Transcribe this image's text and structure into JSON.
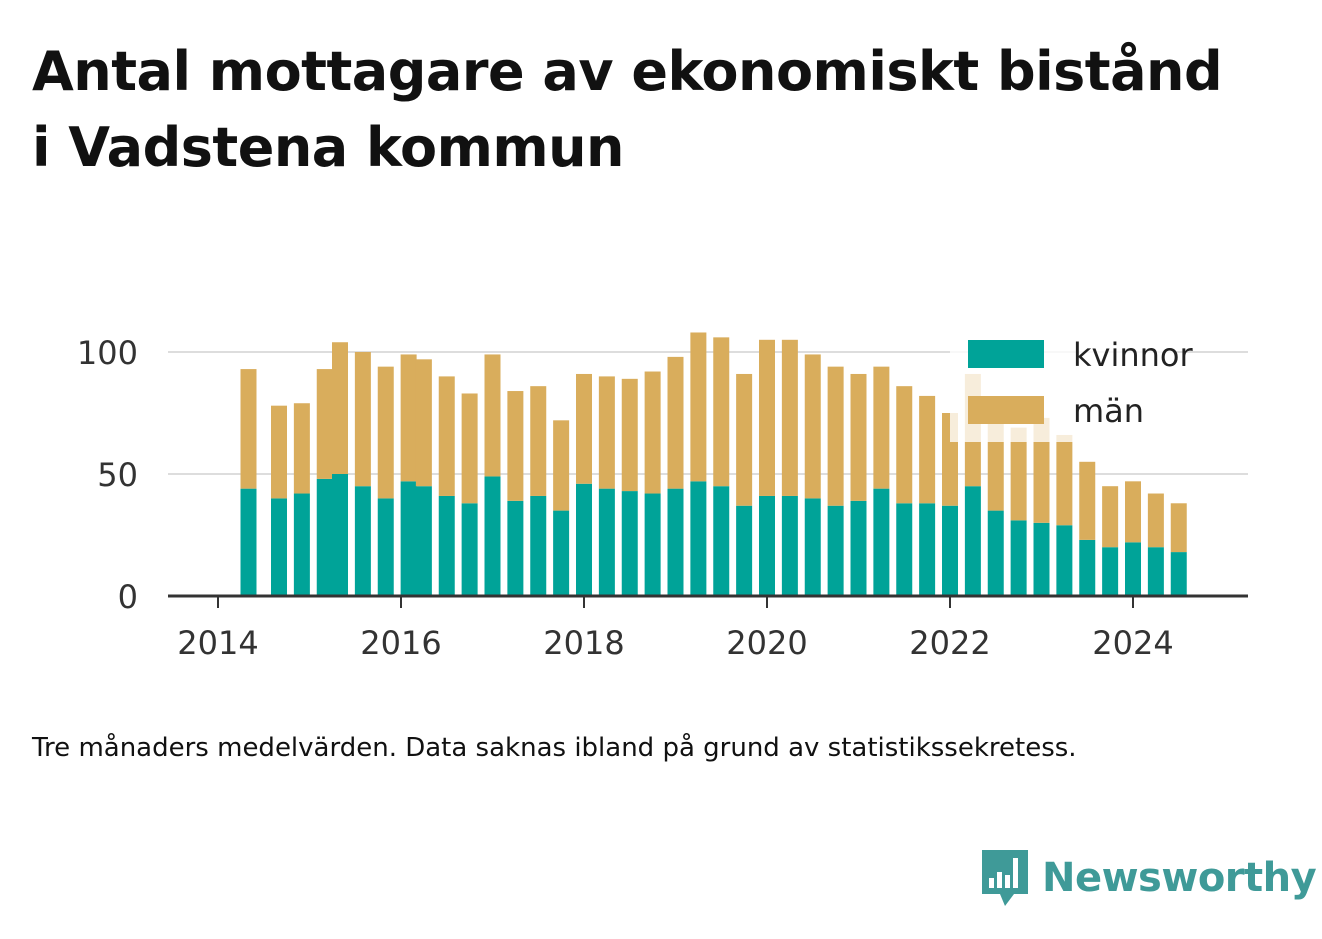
{
  "title": "Antal mottagare av ekonomiskt bistånd i Vadstena kommun",
  "caption": "Tre månaders medelvärden. Data saknas ibland på grund av statistikssekretess.",
  "brand": {
    "name": "Newsworthy",
    "icon": "newsworthy-logo-icon"
  },
  "colors": {
    "kvinnor": "#00a398",
    "man": "#d9ad5c",
    "grid": "#dddddd",
    "axis": "#333333"
  },
  "chart_data": {
    "type": "bar",
    "stacked": true,
    "title": "Antal mottagare av ekonomiskt bistånd i Vadstena kommun",
    "xlabel": "",
    "ylabel": "",
    "ylim": [
      0,
      110
    ],
    "xlim": [
      "2014-01",
      "2025-06"
    ],
    "yticks": [
      0,
      50,
      100
    ],
    "xticks": [
      "2014",
      "2016",
      "2018",
      "2020",
      "2022",
      "2024"
    ],
    "grid": true,
    "legend_position": "top-right",
    "x": [
      "2014-05",
      "2014-09",
      "2014-12",
      "2015-03",
      "2015-05",
      "2015-08",
      "2015-11",
      "2016-02",
      "2016-04",
      "2016-07",
      "2016-10",
      "2017-01",
      "2017-04",
      "2017-07",
      "2017-10",
      "2018-01",
      "2018-04",
      "2018-07",
      "2018-10",
      "2019-01",
      "2019-04",
      "2019-07",
      "2019-10",
      "2020-01",
      "2020-04",
      "2020-07",
      "2020-10",
      "2021-01",
      "2021-04",
      "2021-07",
      "2021-10",
      "2022-01",
      "2022-04",
      "2022-07",
      "2022-10",
      "2023-01",
      "2023-04",
      "2023-07",
      "2023-10",
      "2024-01",
      "2024-04",
      "2024-07"
    ],
    "series": [
      {
        "name": "kvinnor",
        "color": "#00a398",
        "values": [
          44,
          40,
          42,
          48,
          50,
          45,
          40,
          47,
          45,
          41,
          38,
          49,
          39,
          41,
          35,
          46,
          44,
          43,
          42,
          44,
          47,
          45,
          37,
          41,
          41,
          40,
          37,
          39,
          44,
          38,
          38,
          37,
          45,
          35,
          31,
          30,
          29,
          23,
          20,
          22,
          20,
          18
        ]
      },
      {
        "name": "män",
        "color": "#d9ad5c",
        "values": [
          49,
          38,
          37,
          45,
          54,
          55,
          54,
          52,
          52,
          49,
          45,
          50,
          45,
          45,
          37,
          45,
          46,
          46,
          50,
          54,
          61,
          61,
          54,
          64,
          64,
          59,
          57,
          52,
          50,
          48,
          44,
          38,
          46,
          38,
          38,
          43,
          37,
          32,
          25,
          25,
          22,
          20
        ]
      }
    ]
  }
}
